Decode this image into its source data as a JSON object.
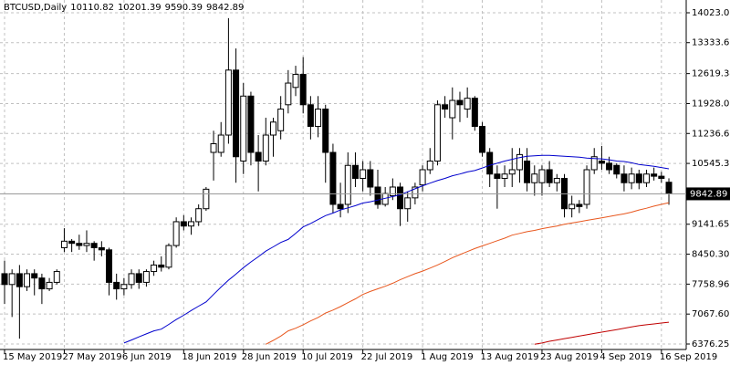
{
  "chart_data": {
    "type": "candlestick",
    "title": "BTCUSD,Daily",
    "categories": [
      "15 May 2019",
      null,
      null,
      null,
      null,
      null,
      null,
      null,
      "27 May 2019",
      null,
      null,
      null,
      null,
      null,
      null,
      null,
      "6 Jun 2019",
      null,
      null,
      null,
      null,
      null,
      null,
      null,
      "18 Jun 2019",
      null,
      null,
      null,
      null,
      null,
      null,
      null,
      "28 Jun 2019",
      null,
      null,
      null,
      null,
      null,
      null,
      null,
      "10 Jul 2019",
      null,
      null,
      null,
      null,
      null,
      null,
      null,
      "22 Jul 2019",
      null,
      null,
      null,
      null,
      null,
      null,
      null,
      "1 Aug 2019",
      null,
      null,
      null,
      null,
      null,
      null,
      null,
      "13 Aug 2019",
      null,
      null,
      null,
      null,
      null,
      null,
      null,
      "23 Aug 2019",
      null,
      null,
      null,
      null,
      null,
      null,
      null,
      "4 Sep 2019",
      null,
      null,
      null,
      null,
      null,
      null,
      null,
      "16 Sep 2019",
      null
    ],
    "open": [
      8000,
      7750,
      8000,
      7700,
      8000,
      7900,
      7650,
      7800,
      8600,
      8750,
      8700,
      8650,
      8700,
      8600,
      8550,
      7800,
      7650,
      7750,
      8000,
      7800,
      8050,
      8200,
      8150,
      8650,
      9200,
      9100,
      9200,
      9500,
      10800,
      10800,
      11200,
      12700,
      10600,
      12100,
      10800,
      10600,
      11200,
      11300,
      11900,
      12300,
      12600,
      11900,
      11400,
      11800,
      10800,
      9600,
      9600,
      10500,
      10200,
      10400,
      10000,
      9600,
      9800,
      10000,
      9500,
      9750,
      10050,
      10400,
      10600,
      11900,
      11600,
      12000,
      11800,
      12050,
      11400,
      10800,
      10300,
      10200,
      10300,
      10400,
      10600,
      10100,
      10100,
      10400,
      10100,
      10200,
      9500,
      9600,
      9600,
      10400,
      10600,
      10550,
      10500,
      10300,
      10100,
      10300,
      10100,
      10300,
      10250,
      10110.82
    ],
    "high": [
      8300,
      8100,
      8200,
      8100,
      8100,
      8000,
      7900,
      8100,
      9050,
      8800,
      8900,
      9000,
      8750,
      8750,
      8600,
      8000,
      7900,
      8100,
      8100,
      8100,
      8300,
      8400,
      8700,
      9300,
      9350,
      9300,
      9600,
      10000,
      11300,
      11500,
      13900,
      13200,
      12400,
      12200,
      11200,
      11600,
      11600,
      12100,
      12700,
      12800,
      13000,
      12100,
      12100,
      11900,
      11000,
      10100,
      10800,
      10800,
      10600,
      10600,
      10400,
      10000,
      10200,
      10100,
      9900,
      10100,
      10500,
      10900,
      12000,
      12100,
      12300,
      12200,
      12300,
      12100,
      11500,
      10900,
      10500,
      10500,
      10900,
      10900,
      10900,
      10500,
      10500,
      10600,
      10300,
      10300,
      9800,
      9700,
      10500,
      10900,
      10950,
      10700,
      10550,
      10500,
      10450,
      10400,
      10400,
      10450,
      10350,
      10201.39
    ],
    "low": [
      7300,
      7000,
      6500,
      7600,
      7500,
      7300,
      7600,
      7750,
      8500,
      8500,
      8550,
      8500,
      8300,
      8400,
      7500,
      7400,
      7500,
      7650,
      7650,
      7700,
      7950,
      8050,
      8100,
      8600,
      9000,
      8900,
      9100,
      9450,
      10150,
      10700,
      11000,
      10100,
      10300,
      10500,
      9900,
      10500,
      10700,
      11100,
      11700,
      12100,
      11700,
      11100,
      11150,
      10100,
      9400,
      9300,
      9400,
      10000,
      9900,
      9800,
      9500,
      9550,
      9700,
      9100,
      9200,
      9600,
      9900,
      10300,
      10500,
      11600,
      11100,
      11500,
      11600,
      11300,
      10700,
      10000,
      9500,
      10000,
      10000,
      10100,
      9900,
      9800,
      9800,
      10000,
      9900,
      9300,
      9300,
      9400,
      9500,
      10300,
      10400,
      10300,
      10200,
      9900,
      9950,
      9950,
      10000,
      10150,
      10100,
      9590.39
    ],
    "close": [
      7750,
      8000,
      7700,
      8000,
      7900,
      7650,
      7800,
      8050,
      8750,
      8700,
      8650,
      8700,
      8600,
      8550,
      7800,
      7650,
      7750,
      8000,
      7800,
      8050,
      8200,
      8150,
      8650,
      9200,
      9100,
      9200,
      9500,
      9950,
      11000,
      11200,
      12700,
      10700,
      12100,
      10800,
      10600,
      11200,
      11500,
      11800,
      12400,
      12600,
      11900,
      11400,
      11800,
      10800,
      9600,
      9500,
      10500,
      10200,
      10400,
      10000,
      9600,
      9850,
      10000,
      9500,
      9750,
      10000,
      10400,
      10600,
      11900,
      11800,
      12000,
      11900,
      12050,
      11400,
      10800,
      10300,
      10200,
      10300,
      10400,
      10750,
      10100,
      10300,
      10400,
      10100,
      10200,
      9500,
      9600,
      9550,
      10400,
      10700,
      10550,
      10400,
      10300,
      10100,
      10300,
      10100,
      10300,
      10250,
      10200,
      9842.89
    ],
    "lines": [
      {
        "color": "#0000cd",
        "values": [
          null,
          null,
          null,
          null,
          null,
          null,
          null,
          null,
          null,
          null,
          null,
          null,
          null,
          null,
          null,
          null,
          6400,
          6470,
          6540,
          6610,
          6680,
          6720,
          6830,
          6940,
          7040,
          7150,
          7250,
          7350,
          7520,
          7690,
          7850,
          7990,
          8140,
          8270,
          8390,
          8520,
          8620,
          8720,
          8790,
          8930,
          9080,
          9160,
          9250,
          9340,
          9400,
          9470,
          9520,
          9570,
          9630,
          9660,
          9700,
          9740,
          9780,
          9820,
          9890,
          9960,
          10030,
          10090,
          10150,
          10200,
          10260,
          10300,
          10350,
          10380,
          10440,
          10500,
          10550,
          10600,
          10640,
          10680,
          10710,
          10720,
          10730,
          10730,
          10720,
          10710,
          10700,
          10690,
          10670,
          10660,
          10650,
          10630,
          10600,
          10590,
          10560,
          10520,
          10500,
          10480,
          10450,
          10420
        ]
      },
      {
        "color": "#e8571e",
        "values": [
          null,
          null,
          null,
          null,
          null,
          null,
          null,
          null,
          null,
          null,
          null,
          null,
          null,
          null,
          null,
          null,
          null,
          null,
          null,
          null,
          null,
          null,
          null,
          null,
          null,
          null,
          null,
          null,
          null,
          null,
          null,
          null,
          null,
          null,
          null,
          6370,
          6460,
          6560,
          6680,
          6740,
          6820,
          6910,
          6990,
          7090,
          7160,
          7240,
          7330,
          7420,
          7520,
          7590,
          7650,
          7710,
          7780,
          7860,
          7930,
          8000,
          8060,
          8130,
          8200,
          8280,
          8370,
          8440,
          8510,
          8580,
          8640,
          8700,
          8760,
          8820,
          8890,
          8930,
          8970,
          9000,
          9040,
          9070,
          9100,
          9140,
          9170,
          9200,
          9230,
          9260,
          9290,
          9320,
          9350,
          9380,
          9420,
          9470,
          9510,
          9560,
          9600,
          9640
        ]
      },
      {
        "color": "#c00000",
        "values": [
          null,
          null,
          null,
          null,
          null,
          null,
          null,
          null,
          null,
          null,
          null,
          null,
          null,
          null,
          null,
          null,
          null,
          null,
          null,
          null,
          null,
          null,
          null,
          null,
          null,
          null,
          null,
          null,
          null,
          null,
          null,
          null,
          null,
          null,
          null,
          null,
          null,
          null,
          null,
          null,
          null,
          null,
          null,
          null,
          null,
          null,
          null,
          null,
          null,
          null,
          null,
          null,
          null,
          null,
          null,
          null,
          null,
          null,
          null,
          null,
          null,
          null,
          null,
          null,
          null,
          null,
          null,
          null,
          null,
          null,
          null,
          6370,
          6400,
          6440,
          6470,
          6500,
          6530,
          6560,
          6590,
          6620,
          6650,
          6680,
          6710,
          6740,
          6770,
          6800,
          6820,
          6840,
          6860,
          6880
        ]
      }
    ],
    "ylim": [
      6250,
      14318
    ],
    "yticks": [
      {
        "value": 14023,
        "label": "14023.00"
      },
      13333.65,
      12619.34,
      {
        "value": 11928,
        "label": "11928.00"
      },
      11236.65,
      {
        "value": 10545.3,
        "label": "10545.30"
      },
      9141.65,
      {
        "value": 8450.3,
        "label": "8450.30"
      },
      7758.96,
      {
        "value": 7067.6,
        "label": "7067.60"
      },
      6376.25
    ],
    "grid": true,
    "up_color": "#ffffff",
    "down_color": "#000000"
  }
}
